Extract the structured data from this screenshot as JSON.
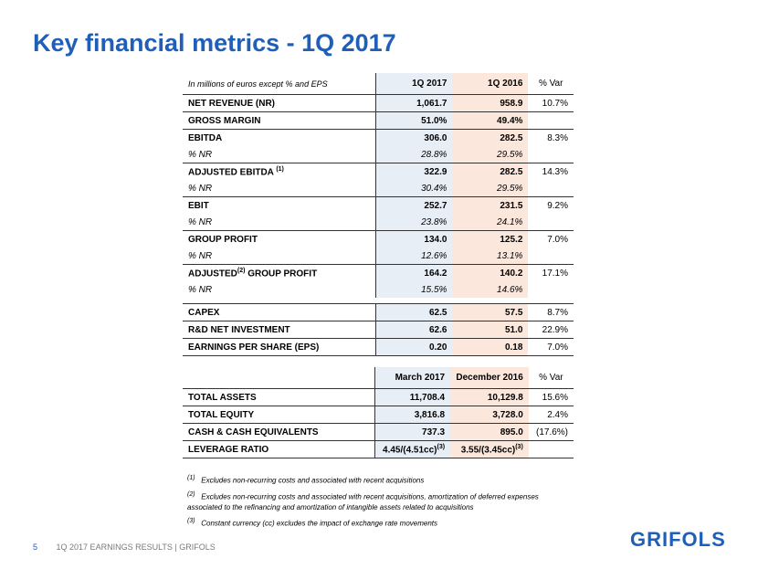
{
  "title": "Key financial metrics - 1Q 2017",
  "table1": {
    "unit_note": "In millions of euros except % and EPS",
    "col1": "1Q 2017",
    "col2": "1Q 2016",
    "col3": "% Var",
    "rows": [
      {
        "label": "NET REVENUE (NR)",
        "v1": "1,061.7",
        "v2": "958.9",
        "v3": "10.7%"
      },
      {
        "label": "GROSS MARGIN",
        "v1": "51.0%",
        "v2": "49.4%",
        "v3": ""
      },
      {
        "label": "EBITDA",
        "v1": "306.0",
        "v2": "282.5",
        "v3": "8.3%"
      },
      {
        "label": "% NR",
        "v1": "28.8%",
        "v2": "29.5%",
        "v3": ""
      },
      {
        "label": "ADJUSTED EBITDA",
        "sup": "(1)",
        "v1": "322.9",
        "v2": "282.5",
        "v3": "14.3%"
      },
      {
        "label": "% NR",
        "v1": "30.4%",
        "v2": "29.5%",
        "v3": ""
      },
      {
        "label": "EBIT",
        "v1": "252.7",
        "v2": "231.5",
        "v3": "9.2%"
      },
      {
        "label": "% NR",
        "v1": "23.8%",
        "v2": "24.1%",
        "v3": ""
      },
      {
        "label": "GROUP PROFIT",
        "v1": "134.0",
        "v2": "125.2",
        "v3": "7.0%"
      },
      {
        "label": "% NR",
        "v1": "12.6%",
        "v2": "13.1%",
        "v3": ""
      },
      {
        "label_a": "ADJUSTED",
        "sup": "(2)",
        "label_b": " GROUP PROFIT",
        "v1": "164.2",
        "v2": "140.2",
        "v3": "17.1%"
      },
      {
        "label": "% NR",
        "v1": "15.5%",
        "v2": "14.6%",
        "v3": ""
      }
    ]
  },
  "table2": {
    "rows": [
      {
        "label": "CAPEX",
        "v1": "62.5",
        "v2": "57.5",
        "v3": "8.7%"
      },
      {
        "label": "R&D NET INVESTMENT",
        "v1": "62.6",
        "v2": "51.0",
        "v3": "22.9%"
      },
      {
        "label": "EARNINGS PER SHARE (EPS)",
        "v1": "0.20",
        "v2": "0.18",
        "v3": "7.0%"
      }
    ]
  },
  "table3": {
    "col1": "March 2017",
    "col2": "December 2016",
    "col3": "% Var",
    "rows": [
      {
        "label": "TOTAL ASSETS",
        "v1": "11,708.4",
        "v2": "10,129.8",
        "v3": "15.6%"
      },
      {
        "label": "TOTAL EQUITY",
        "v1": "3,816.8",
        "v2": "3,728.0",
        "v3": "2.4%"
      },
      {
        "label": "CASH & CASH EQUIVALENTS",
        "v1": "737.3",
        "v2": "895.0",
        "v3": "(17.6%)"
      },
      {
        "label": "LEVERAGE RATIO",
        "v1": "4.45/(4.51cc)",
        "v1_sup": "(3)",
        "v2": "3.55/(3.45cc)",
        "v2_sup": "(3)",
        "v3": ""
      }
    ]
  },
  "notes": [
    {
      "mark": "(1)",
      "text": "Excludes non-recurring costs and associated with recent acquisitions"
    },
    {
      "mark": "(2)",
      "text": "Excludes non-recurring costs and associated with recent acquisitions, amortization of deferred expenses associated to the refinancing and amortization of intangible assets related to acquisitions"
    },
    {
      "mark": "(3)",
      "text": "Constant currency (cc) excludes the impact of exchange rate movements"
    }
  ],
  "footer": {
    "page": "5",
    "text": "1Q 2017 EARNINGS RESULTS | GRIFOLS"
  },
  "logo": "GRIFOLS",
  "colors": {
    "accent": "#1f5fb8",
    "col1_bg": "#e8eef6",
    "col2_bg": "#fbe7dc"
  }
}
